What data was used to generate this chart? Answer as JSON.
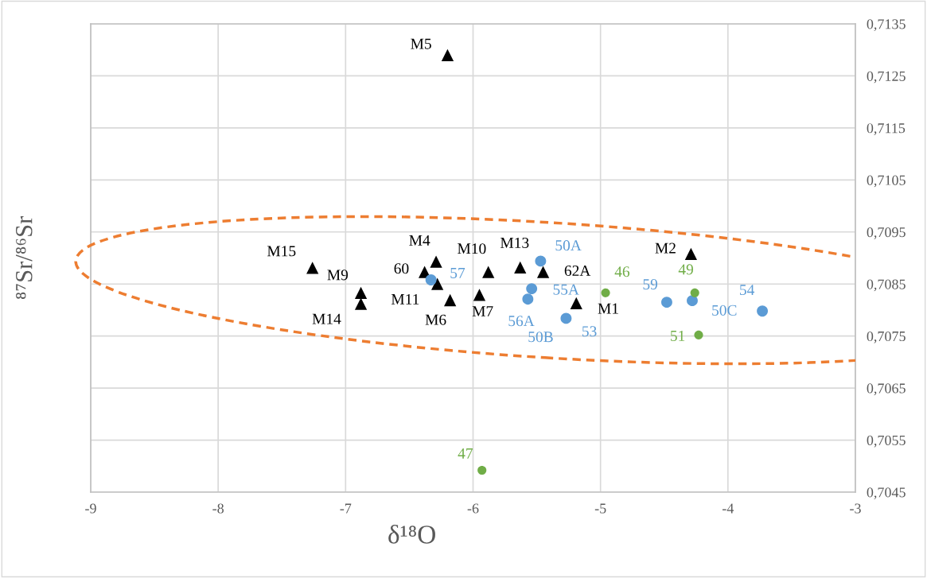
{
  "chart_data": {
    "type": "scatter",
    "xlabel": "δ¹⁸O",
    "ylabel": "⁸⁷Sr/⁸⁶Sr",
    "xlim": [
      -9,
      -3
    ],
    "xticks": [
      -9,
      -8,
      -7,
      -6,
      -5,
      -4,
      -3
    ],
    "ylim": [
      0.7045,
      0.7135
    ],
    "yticks": [
      {
        "value": 0.7045,
        "label": "0,7045"
      },
      {
        "value": 0.7055,
        "label": "0,7055"
      },
      {
        "value": 0.7065,
        "label": "0,7065"
      },
      {
        "value": 0.7075,
        "label": "0,7075"
      },
      {
        "value": 0.7085,
        "label": "0,7085"
      },
      {
        "value": 0.7095,
        "label": "0,7095"
      },
      {
        "value": 0.7105,
        "label": "0,7105"
      },
      {
        "value": 0.7115,
        "label": "0,7115"
      },
      {
        "value": 0.7125,
        "label": "0,7125"
      },
      {
        "value": 0.7135,
        "label": "0,7135"
      }
    ],
    "grid": true,
    "legend": false,
    "series": [
      {
        "color": "#000000",
        "marker": "triangle",
        "x": [
          -6.2,
          -7.26,
          -6.29,
          -6.38,
          -6.88,
          -6.88,
          -6.28,
          -6.18,
          -5.95,
          -5.88,
          -5.63,
          -5.45,
          -5.19,
          -4.29
        ],
        "values": [
          0.7129,
          0.70881,
          0.70893,
          0.70873,
          0.70833,
          0.70812,
          0.7085,
          0.70819,
          0.70829,
          0.70873,
          0.70882,
          0.70873,
          0.70813,
          0.70908
        ]
      },
      {
        "color": "#5b9bd5",
        "marker": "circle",
        "x": [
          -5.47,
          -6.33,
          -5.54,
          -5.57,
          -5.28,
          -5.27,
          -4.48,
          -4.28,
          -3.73
        ],
        "values": [
          0.70894,
          0.70858,
          0.70841,
          0.70821,
          null,
          0.70784,
          0.70815,
          0.70818,
          0.70798
        ]
      },
      {
        "color": "#70ad47",
        "marker": "circle",
        "x": [
          -4.96,
          -4.26,
          -4.23,
          -5.93
        ],
        "values": [
          0.70833,
          0.70833,
          0.70752,
          0.70492
        ]
      }
    ],
    "annotations": [
      {
        "text": "M5",
        "x": -6.2,
        "y": 0.7129
      },
      {
        "text": "M15",
        "x": -7.26,
        "y": 0.70881
      },
      {
        "text": "M4",
        "x": -6.29,
        "y": 0.70893
      },
      {
        "text": "60",
        "x": -6.38,
        "y": 0.70873
      },
      {
        "text": "M9",
        "x": -6.88,
        "y": 0.70833
      },
      {
        "text": "M14",
        "x": -6.88,
        "y": 0.70812
      },
      {
        "text": "M11",
        "x": -6.28,
        "y": 0.7085
      },
      {
        "text": "M6",
        "x": -6.18,
        "y": 0.70819
      },
      {
        "text": "M7",
        "x": -5.95,
        "y": 0.70829
      },
      {
        "text": "M10",
        "x": -5.88,
        "y": 0.70873
      },
      {
        "text": "M13",
        "x": -5.63,
        "y": 0.70882
      },
      {
        "text": "62A",
        "x": -5.45,
        "y": 0.70873
      },
      {
        "text": "M1",
        "x": -5.19,
        "y": 0.70813
      },
      {
        "text": "M2",
        "x": -4.29,
        "y": 0.70908
      },
      {
        "text": "50A",
        "x": -5.47,
        "y": 0.70894
      },
      {
        "text": "57",
        "x": -6.33,
        "y": 0.70858
      },
      {
        "text": "55A",
        "x": -5.54,
        "y": 0.70841
      },
      {
        "text": "56A",
        "x": -5.57,
        "y": 0.70821
      },
      {
        "text": "50B",
        "x": -5.27,
        "y": 0.70784
      },
      {
        "text": "53",
        "x": -5.27,
        "y": 0.70784
      },
      {
        "text": "59",
        "x": -4.48,
        "y": 0.70815
      },
      {
        "text": "50C",
        "x": -4.28,
        "y": 0.70818
      },
      {
        "text": "54",
        "x": -3.73,
        "y": 0.70798
      },
      {
        "text": "46",
        "x": -4.96,
        "y": 0.70833
      },
      {
        "text": "49",
        "x": -4.26,
        "y": 0.70833
      },
      {
        "text": "51",
        "x": -4.23,
        "y": 0.70752
      },
      {
        "text": "47",
        "x": -5.93,
        "y": 0.70492
      }
    ]
  }
}
